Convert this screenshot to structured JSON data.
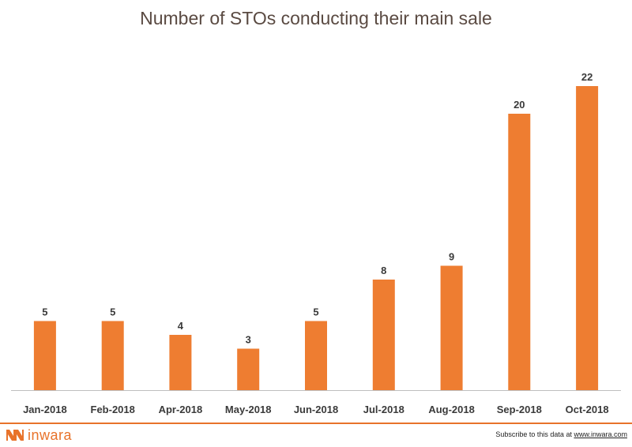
{
  "chart_data": {
    "type": "bar",
    "title": "Number of STOs conducting their main sale",
    "categories": [
      "Jan-2018",
      "Feb-2018",
      "Apr-2018",
      "May-2018",
      "Jun-2018",
      "Jul-2018",
      "Aug-2018",
      "Sep-2018",
      "Oct-2018"
    ],
    "values": [
      5,
      5,
      4,
      3,
      5,
      8,
      9,
      20,
      22
    ],
    "xlabel": "",
    "ylabel": "",
    "ylim": [
      0,
      25
    ],
    "grid": false,
    "legend": "none",
    "data_labels": true,
    "bar_color": "#ee7d31"
  },
  "footer": {
    "brand": "inwara",
    "brand_color": "#e8732b",
    "subscribe_text": "Subscribe to this data at",
    "subscribe_link": "www.inwara.com"
  }
}
